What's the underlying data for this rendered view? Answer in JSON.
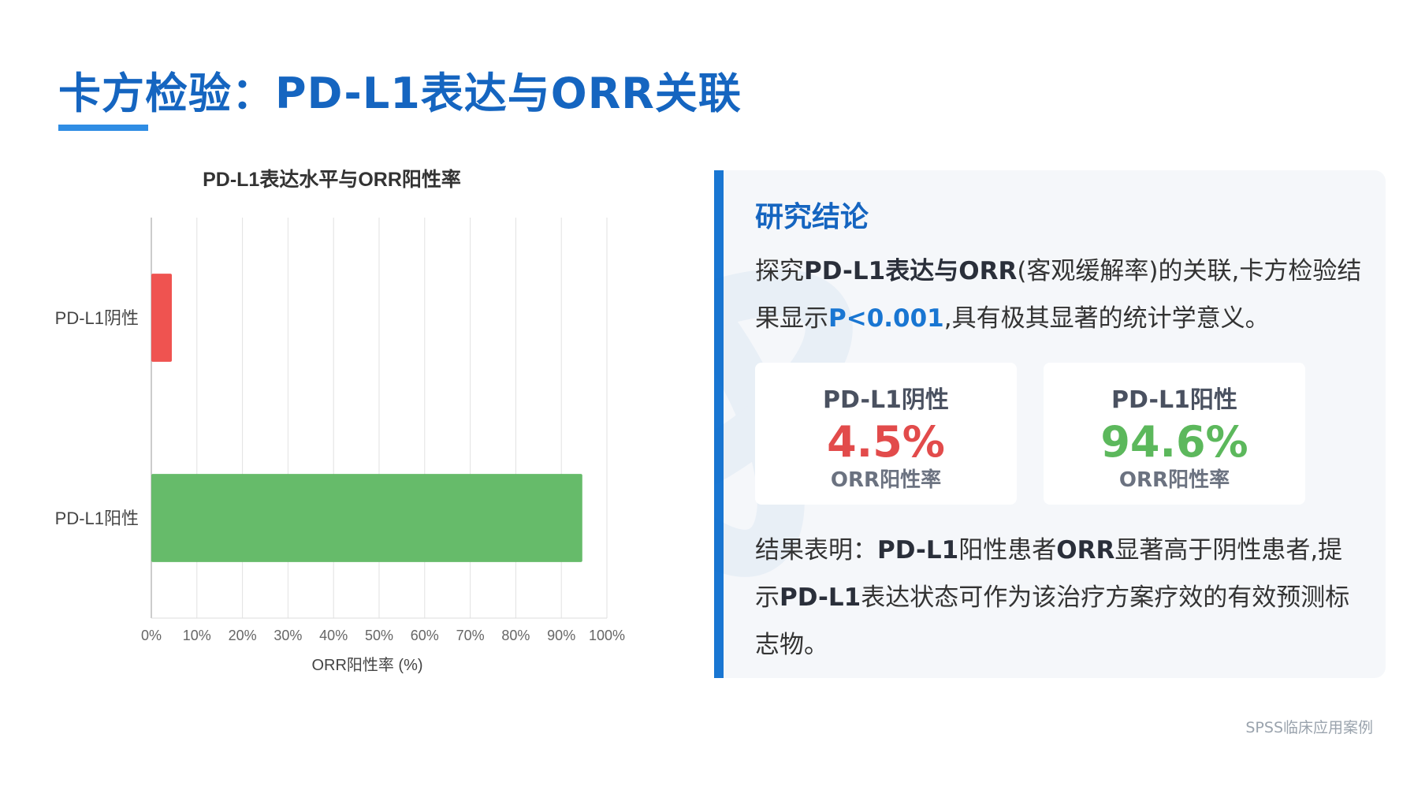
{
  "page": {
    "title": "卡方检验：PD-L1表达与ORR关联",
    "footer": "SPSS临床应用案例"
  },
  "chart_data": {
    "type": "bar",
    "orientation": "horizontal",
    "title": "PD-L1表达水平与ORR阳性率",
    "xlabel": "ORR阳性率 (%)",
    "ylabel": "",
    "xlim": [
      0,
      100
    ],
    "x_ticks": [
      "0%",
      "10%",
      "20%",
      "30%",
      "40%",
      "50%",
      "60%",
      "70%",
      "80%",
      "90%",
      "100%"
    ],
    "grid": true,
    "categories": [
      "PD-L1阴性",
      "PD-L1阳性"
    ],
    "values": [
      4.5,
      94.6
    ],
    "colors": [
      "#ef5350",
      "#66bb6a"
    ]
  },
  "panel": {
    "heading": "研究结论",
    "p1": [
      {
        "text": "探究",
        "style": "normal"
      },
      {
        "text": "PD-L1表达与ORR",
        "style": "bold"
      },
      {
        "text": "(客观缓解率)的关联,卡方检验结果显示",
        "style": "normal"
      },
      {
        "text": "P<0.001",
        "style": "blue"
      },
      {
        "text": ",具有极其显著的统计学意义。",
        "style": "normal"
      }
    ],
    "cards": [
      {
        "label": "PD-L1阴性",
        "value": "4.5%",
        "caption": "ORR阳性率",
        "color": "#e24b4b"
      },
      {
        "label": "PD-L1阳性",
        "value": "94.6%",
        "caption": "ORR阳性率",
        "color": "#5cb85c"
      }
    ],
    "p2": [
      {
        "text": "结果表明：",
        "style": "normal"
      },
      {
        "text": "PD-L1",
        "style": "bold"
      },
      {
        "text": "阳性患者",
        "style": "normal"
      },
      {
        "text": "ORR",
        "style": "bold"
      },
      {
        "text": "显著高于阴性患者,提示",
        "style": "normal"
      },
      {
        "text": "PD-L1",
        "style": "bold"
      },
      {
        "text": "表达状态可作为该治疗方案疗效的有效预测标志物。",
        "style": "normal"
      }
    ]
  }
}
